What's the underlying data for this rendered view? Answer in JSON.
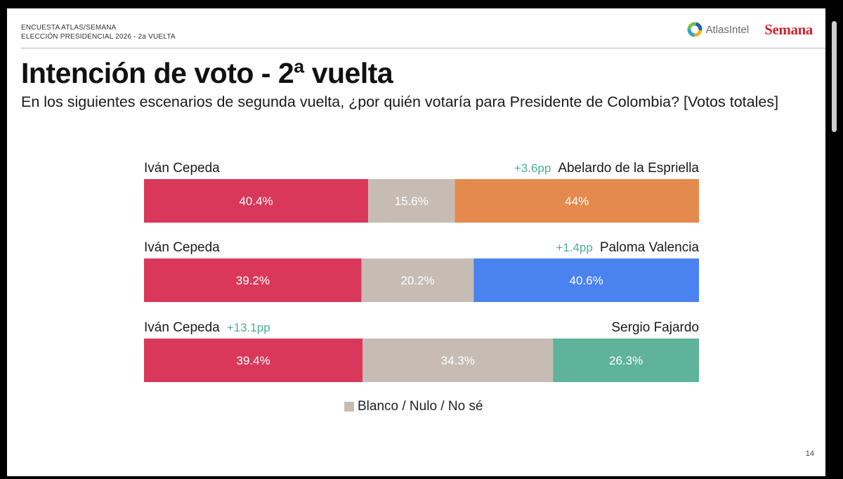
{
  "header": {
    "line1": "ENCUESTA ATLAS/SEMANA",
    "line2": "ELECCIÓN PRESIDENCIAL 2026 - 2a VUELTA",
    "logo_atlas": "AtlasIntel",
    "logo_semana": "Semana"
  },
  "title": "Intención de voto - 2ª vuelta",
  "subtitle": "En los siguientes escenarios de segunda vuelta, ¿por quién votaría para Presidente de Colombia? [Votos totales]",
  "page_number": "14",
  "colors": {
    "cepeda": "#d9385a",
    "blanco": "#c7bcb4",
    "espriella": "#e58a4e",
    "valencia": "#4a82f0",
    "fajardo": "#5fb39a",
    "lead": "#4fb08f"
  },
  "chart_data": {
    "type": "bar",
    "stacked": true,
    "orientation": "horizontal",
    "legend": "Blanco / Nulo / No sé",
    "scenarios": [
      {
        "left_candidate": "Iván Cepeda",
        "right_candidate": "Abelardo de la Espriella",
        "lead_label": "+3.6pp",
        "lead_side": "right",
        "segments": [
          {
            "name": "Iván Cepeda",
            "value": 40.4,
            "label": "40.4%",
            "color": "#d9385a"
          },
          {
            "name": "Blanco / Nulo / No sé",
            "value": 15.6,
            "label": "15.6%",
            "color": "#c7bcb4"
          },
          {
            "name": "Abelardo de la Espriella",
            "value": 44,
            "label": "44%",
            "color": "#e58a4e"
          }
        ]
      },
      {
        "left_candidate": "Iván Cepeda",
        "right_candidate": "Paloma Valencia",
        "lead_label": "+1.4pp",
        "lead_side": "right",
        "segments": [
          {
            "name": "Iván Cepeda",
            "value": 39.2,
            "label": "39.2%",
            "color": "#d9385a"
          },
          {
            "name": "Blanco / Nulo / No sé",
            "value": 20.2,
            "label": "20.2%",
            "color": "#c7bcb4"
          },
          {
            "name": "Paloma Valencia",
            "value": 40.6,
            "label": "40.6%",
            "color": "#4a82f0"
          }
        ]
      },
      {
        "left_candidate": "Iván Cepeda",
        "right_candidate": "Sergio Fajardo",
        "lead_label": "+13.1pp",
        "lead_side": "left",
        "segments": [
          {
            "name": "Iván Cepeda",
            "value": 39.4,
            "label": "39.4%",
            "color": "#d9385a"
          },
          {
            "name": "Blanco / Nulo / No sé",
            "value": 34.3,
            "label": "34.3%",
            "color": "#c7bcb4"
          },
          {
            "name": "Sergio Fajardo",
            "value": 26.3,
            "label": "26.3%",
            "color": "#5fb39a"
          }
        ]
      }
    ]
  }
}
